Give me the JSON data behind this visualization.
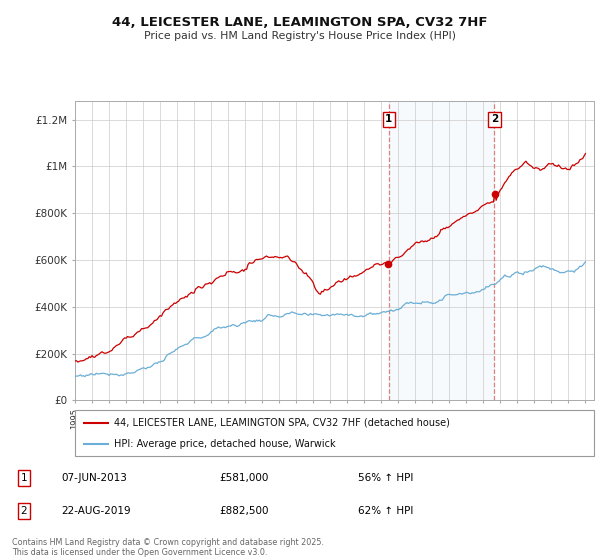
{
  "title": "44, LEICESTER LANE, LEAMINGTON SPA, CV32 7HF",
  "subtitle": "Price paid vs. HM Land Registry's House Price Index (HPI)",
  "ylabel_ticks": [
    "£0",
    "£200K",
    "£400K",
    "£600K",
    "£800K",
    "£1M",
    "£1.2M"
  ],
  "ylim": [
    0,
    1280000
  ],
  "yticks": [
    0,
    200000,
    400000,
    600000,
    800000,
    1000000,
    1200000
  ],
  "sale1_date": "07-JUN-2013",
  "sale1_price": 581000,
  "sale1_pct": "56% ↑ HPI",
  "sale2_date": "22-AUG-2019",
  "sale2_price": 882500,
  "sale2_pct": "62% ↑ HPI",
  "legend1": "44, LEICESTER LANE, LEAMINGTON SPA, CV32 7HF (detached house)",
  "legend2": "HPI: Average price, detached house, Warwick",
  "footer": "Contains HM Land Registry data © Crown copyright and database right 2025.\nThis data is licensed under the Open Government Licence v3.0.",
  "hpi_color": "#6baed6",
  "price_color": "#cc0000",
  "sale1_x": 2013.44,
  "sale2_x": 2019.64,
  "annotation_bg": "#ddeeff",
  "grid_color": "#cccccc",
  "hpi_seed": 77,
  "prop_seed": 55
}
